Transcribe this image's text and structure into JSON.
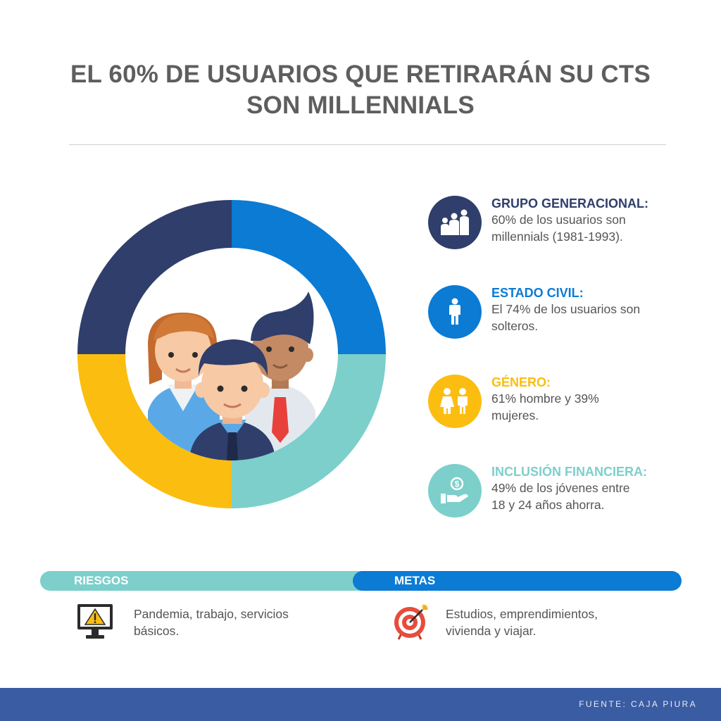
{
  "title": {
    "line1": "EL 60% DE USUARIOS QUE RETIRARÁN SU CTS",
    "line2": "SON MILLENNIALS"
  },
  "colors": {
    "navy": "#2f3e6b",
    "blue": "#0b7bd4",
    "teal": "#7ccfcb",
    "yellow": "#fbbd10",
    "footer": "#3a5ca3"
  },
  "stats": [
    {
      "heading": "GRUPO GENERACIONAL:",
      "line1": "60% de los usuarios son",
      "line2": "millennials (1981-1993).",
      "color": "#2f3e6b",
      "icon": "family-icon"
    },
    {
      "heading": "ESTADO CIVIL:",
      "line1": "El 74% de los usuarios son",
      "line2": "solteros.",
      "color": "#0b7bd4",
      "icon": "person-icon"
    },
    {
      "heading": "GÉNERO:",
      "line1": "61% hombre y 39%",
      "line2": "mujeres.",
      "color": "#fbbd10",
      "icon": "gender-icon"
    },
    {
      "heading": "INCLUSIÓN FINANCIERA:",
      "line1": "49% de los jóvenes entre",
      "line2": "18 y 24 años ahorra.",
      "color": "#7ccfcb",
      "icon": "money-hand-icon"
    }
  ],
  "riesgos": {
    "label": "RIESGOS",
    "line1": "Pandemia, trabajo, servicios",
    "line2": "básicos.",
    "icon": "warning-monitor-icon"
  },
  "metas": {
    "label": "METAS",
    "line1": "Estudios, emprendimientos,",
    "line2": "vivienda y viajar.",
    "icon": "target-icon"
  },
  "footer": {
    "source": "FUENTE: CAJA PIURA"
  }
}
